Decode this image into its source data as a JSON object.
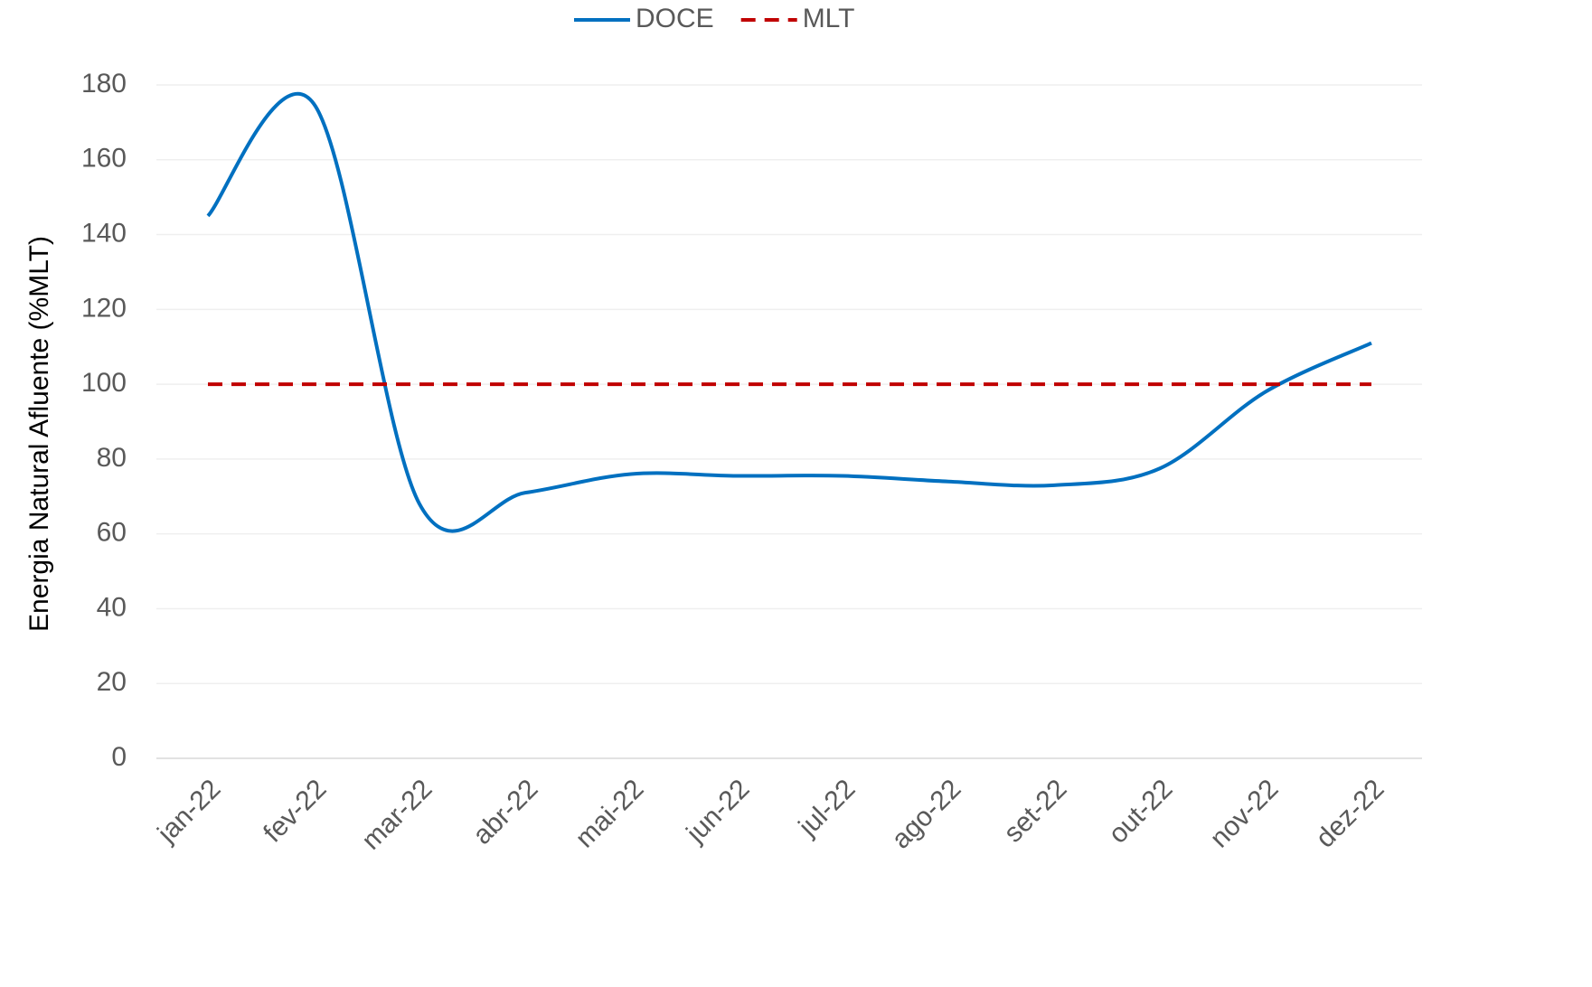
{
  "chart_data": {
    "type": "line",
    "y_axis_label": "Energia Natural Afluente (%MLT)",
    "categories": [
      "jan-22",
      "fev-22",
      "mar-22",
      "abr-22",
      "mai-22",
      "jun-22",
      "jul-22",
      "ago-22",
      "set-22",
      "out-22",
      "nov-22",
      "dez-22"
    ],
    "series": [
      {
        "name": "DOCE",
        "color": "#0070c0",
        "dash": false,
        "smooth": true,
        "values": [
          145,
          175,
          68,
          71,
          76,
          75.5,
          75.5,
          74,
          73,
          77.5,
          98,
          111
        ]
      },
      {
        "name": "MLT",
        "color": "#c00000",
        "dash": true,
        "smooth": false,
        "values": [
          100,
          100,
          100,
          100,
          100,
          100,
          100,
          100,
          100,
          100,
          100,
          100
        ]
      }
    ],
    "ylim": [
      0,
      180
    ],
    "yticks": [
      0,
      20,
      40,
      60,
      80,
      100,
      120,
      140,
      160,
      180
    ],
    "grid": true,
    "legend": "top"
  }
}
